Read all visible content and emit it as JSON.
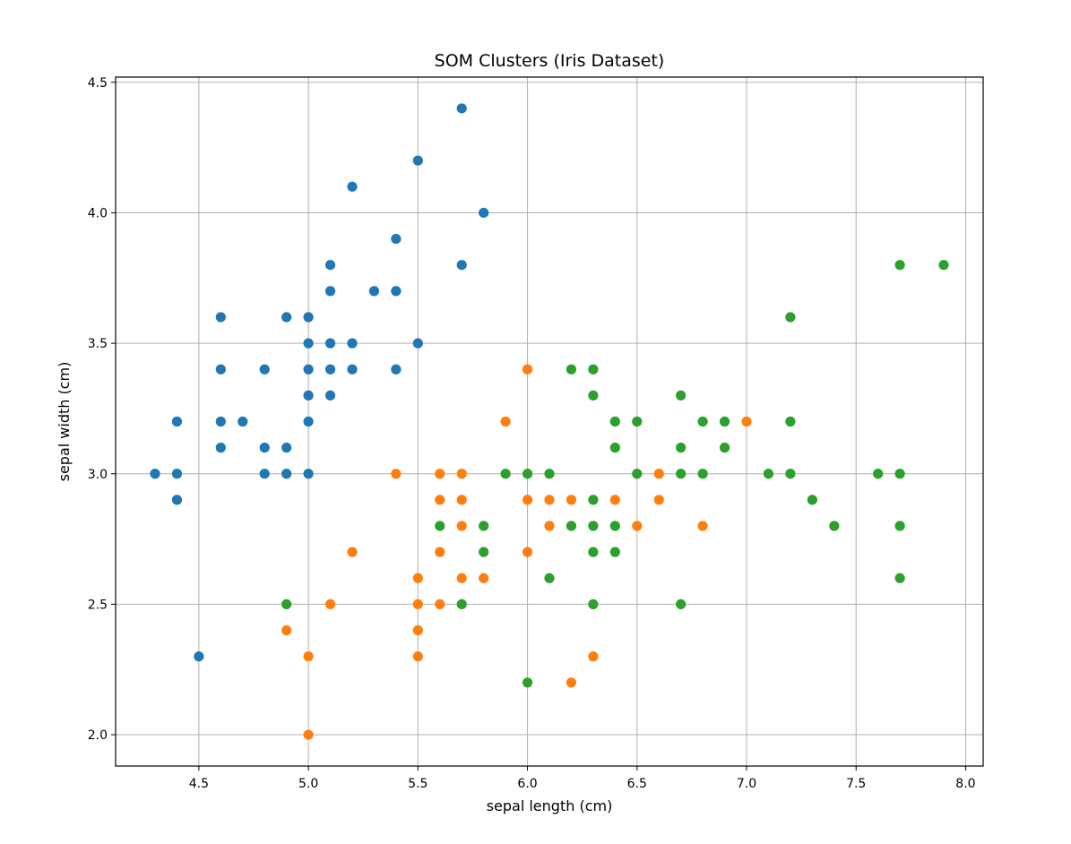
{
  "chart_data": {
    "type": "scatter",
    "title": "SOM Clusters (Iris Dataset)",
    "xlabel": "sepal length (cm)",
    "ylabel": "sepal width (cm)",
    "xlim": [
      4.12,
      8.08
    ],
    "ylim": [
      1.88,
      4.52
    ],
    "xticks": [
      4.5,
      5.0,
      5.5,
      6.0,
      6.5,
      7.0,
      7.5,
      8.0
    ],
    "xtick_labels": [
      "4.5",
      "5.0",
      "5.5",
      "6.0",
      "6.5",
      "7.0",
      "7.5",
      "8.0"
    ],
    "yticks": [
      2.0,
      2.5,
      3.0,
      3.5,
      4.0,
      4.5
    ],
    "ytick_labels": [
      "2.0",
      "2.5",
      "3.0",
      "3.5",
      "4.0",
      "4.5"
    ],
    "grid": true,
    "legend": "none",
    "series": [
      {
        "color": "#1f77b4",
        "points": [
          [
            5.7,
            4.4
          ],
          [
            5.5,
            4.2
          ],
          [
            5.2,
            4.1
          ],
          [
            5.8,
            4.0
          ],
          [
            5.4,
            3.9
          ],
          [
            5.7,
            3.8
          ],
          [
            5.1,
            3.8
          ],
          [
            5.1,
            3.7
          ],
          [
            5.3,
            3.7
          ],
          [
            5.4,
            3.7
          ],
          [
            4.6,
            3.6
          ],
          [
            4.9,
            3.6
          ],
          [
            5.0,
            3.6
          ],
          [
            5.0,
            3.5
          ],
          [
            5.1,
            3.5
          ],
          [
            5.2,
            3.5
          ],
          [
            5.5,
            3.5
          ],
          [
            4.6,
            3.4
          ],
          [
            4.8,
            3.4
          ],
          [
            5.0,
            3.4
          ],
          [
            5.1,
            3.4
          ],
          [
            5.2,
            3.4
          ],
          [
            5.4,
            3.4
          ],
          [
            5.0,
            3.3
          ],
          [
            5.1,
            3.3
          ],
          [
            4.4,
            3.2
          ],
          [
            4.6,
            3.2
          ],
          [
            4.7,
            3.2
          ],
          [
            5.0,
            3.2
          ],
          [
            4.6,
            3.1
          ],
          [
            4.8,
            3.1
          ],
          [
            4.9,
            3.1
          ],
          [
            4.3,
            3.0
          ],
          [
            4.4,
            3.0
          ],
          [
            4.8,
            3.0
          ],
          [
            4.9,
            3.0
          ],
          [
            5.0,
            3.0
          ],
          [
            4.4,
            2.9
          ],
          [
            4.5,
            2.3
          ]
        ]
      },
      {
        "color": "#ff7f0e",
        "points": [
          [
            6.0,
            3.4
          ],
          [
            5.9,
            3.2
          ],
          [
            7.0,
            3.2
          ],
          [
            5.4,
            3.0
          ],
          [
            5.6,
            3.0
          ],
          [
            5.7,
            3.0
          ],
          [
            6.6,
            3.0
          ],
          [
            5.6,
            2.9
          ],
          [
            5.7,
            2.9
          ],
          [
            6.0,
            2.9
          ],
          [
            6.1,
            2.9
          ],
          [
            6.2,
            2.9
          ],
          [
            6.4,
            2.9
          ],
          [
            6.6,
            2.9
          ],
          [
            5.7,
            2.8
          ],
          [
            6.1,
            2.8
          ],
          [
            6.5,
            2.8
          ],
          [
            6.8,
            2.8
          ],
          [
            5.2,
            2.7
          ],
          [
            5.6,
            2.7
          ],
          [
            6.0,
            2.7
          ],
          [
            5.5,
            2.6
          ],
          [
            5.7,
            2.6
          ],
          [
            5.8,
            2.6
          ],
          [
            5.1,
            2.5
          ],
          [
            5.5,
            2.5
          ],
          [
            5.6,
            2.5
          ],
          [
            4.9,
            2.4
          ],
          [
            5.5,
            2.4
          ],
          [
            5.0,
            2.3
          ],
          [
            5.5,
            2.3
          ],
          [
            6.3,
            2.3
          ],
          [
            6.2,
            2.2
          ],
          [
            5.0,
            2.0
          ]
        ]
      },
      {
        "color": "#2ca02c",
        "points": [
          [
            7.7,
            3.8
          ],
          [
            7.9,
            3.8
          ],
          [
            7.2,
            3.6
          ],
          [
            6.2,
            3.4
          ],
          [
            6.3,
            3.4
          ],
          [
            6.3,
            3.3
          ],
          [
            6.7,
            3.3
          ],
          [
            6.4,
            3.2
          ],
          [
            6.5,
            3.2
          ],
          [
            6.8,
            3.2
          ],
          [
            6.9,
            3.2
          ],
          [
            7.2,
            3.2
          ],
          [
            6.4,
            3.1
          ],
          [
            6.7,
            3.1
          ],
          [
            6.9,
            3.1
          ],
          [
            5.9,
            3.0
          ],
          [
            6.0,
            3.0
          ],
          [
            6.1,
            3.0
          ],
          [
            6.5,
            3.0
          ],
          [
            6.7,
            3.0
          ],
          [
            6.8,
            3.0
          ],
          [
            7.1,
            3.0
          ],
          [
            7.2,
            3.0
          ],
          [
            7.6,
            3.0
          ],
          [
            7.7,
            3.0
          ],
          [
            6.3,
            2.9
          ],
          [
            7.3,
            2.9
          ],
          [
            5.6,
            2.8
          ],
          [
            5.8,
            2.8
          ],
          [
            6.2,
            2.8
          ],
          [
            6.3,
            2.8
          ],
          [
            6.4,
            2.8
          ],
          [
            7.4,
            2.8
          ],
          [
            7.7,
            2.8
          ],
          [
            5.8,
            2.7
          ],
          [
            6.3,
            2.7
          ],
          [
            6.4,
            2.7
          ],
          [
            6.1,
            2.6
          ],
          [
            7.7,
            2.6
          ],
          [
            4.9,
            2.5
          ],
          [
            5.7,
            2.5
          ],
          [
            6.3,
            2.5
          ],
          [
            6.7,
            2.5
          ],
          [
            6.0,
            2.2
          ]
        ]
      }
    ]
  }
}
